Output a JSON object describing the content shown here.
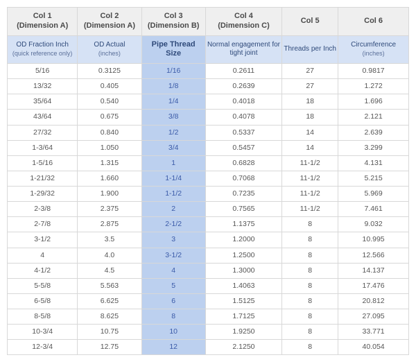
{
  "table": {
    "col_widths": [
      "w1",
      "w2",
      "w3",
      "w4",
      "w5",
      "w6"
    ],
    "header_bg": "#efefef",
    "header_color": "#4a4a4a",
    "subheader_bg": "#d6e2f5",
    "subheader_color": "#2f4a7a",
    "highlight_col_bg": "#bcd0ef",
    "highlight_col_text": "#3a5aa8",
    "row_bg": "#ffffff",
    "row_text": "#555555",
    "border_color": "#d8d8d8",
    "headers": [
      {
        "line1": "Col 1",
        "line2": "(Dimension A)"
      },
      {
        "line1": "Col 2",
        "line2": "(Dimension A)"
      },
      {
        "line1": "Col 3",
        "line2": "(Dimension B)"
      },
      {
        "line1": "Col 4",
        "line2": "(Dimension C)"
      },
      {
        "line1": "Col 5",
        "line2": ""
      },
      {
        "line1": "Col 6",
        "line2": ""
      }
    ],
    "subheaders": [
      {
        "main": "OD Fraction Inch",
        "sub": "(quick reference only)"
      },
      {
        "main": "OD Actual",
        "sub": "(inches)"
      },
      {
        "main": "Pipe Thread Size",
        "sub": ""
      },
      {
        "main": "Normal engagement for tight joint",
        "sub": ""
      },
      {
        "main": "Threads per Inch",
        "sub": ""
      },
      {
        "main": "Circumference",
        "sub": "(inches)"
      }
    ],
    "rows": [
      [
        "5/16",
        "0.3125",
        "1/16",
        "0.2611",
        "27",
        "0.9817"
      ],
      [
        "13/32",
        "0.405",
        "1/8",
        "0.2639",
        "27",
        "1.272"
      ],
      [
        "35/64",
        "0.540",
        "1/4",
        "0.4018",
        "18",
        "1.696"
      ],
      [
        "43/64",
        "0.675",
        "3/8",
        "0.4078",
        "18",
        "2.121"
      ],
      [
        "27/32",
        "0.840",
        "1/2",
        "0.5337",
        "14",
        "2.639"
      ],
      [
        "1-3/64",
        "1.050",
        "3/4",
        "0.5457",
        "14",
        "3.299"
      ],
      [
        "1-5/16",
        "1.315",
        "1",
        "0.6828",
        "11-1/2",
        "4.131"
      ],
      [
        "1-21/32",
        "1.660",
        "1-1/4",
        "0.7068",
        "11-1/2",
        "5.215"
      ],
      [
        "1-29/32",
        "1.900",
        "1-1/2",
        "0.7235",
        "11-1/2",
        "5.969"
      ],
      [
        "2-3/8",
        "2.375",
        "2",
        "0.7565",
        "11-1/2",
        "7.461"
      ],
      [
        "2-7/8",
        "2.875",
        "2-1/2",
        "1.1375",
        "8",
        "9.032"
      ],
      [
        "3-1/2",
        "3.5",
        "3",
        "1.2000",
        "8",
        "10.995"
      ],
      [
        "4",
        "4.0",
        "3-1/2",
        "1.2500",
        "8",
        "12.566"
      ],
      [
        "4-1/2",
        "4.5",
        "4",
        "1.3000",
        "8",
        "14.137"
      ],
      [
        "5-5/8",
        "5.563",
        "5",
        "1.4063",
        "8",
        "17.476"
      ],
      [
        "6-5/8",
        "6.625",
        "6",
        "1.5125",
        "8",
        "20.812"
      ],
      [
        "8-5/8",
        "8.625",
        "8",
        "1.7125",
        "8",
        "27.095"
      ],
      [
        "10-3/4",
        "10.75",
        "10",
        "1.9250",
        "8",
        "33.771"
      ],
      [
        "12-3/4",
        "12.75",
        "12",
        "2.1250",
        "8",
        "40.054"
      ]
    ]
  }
}
